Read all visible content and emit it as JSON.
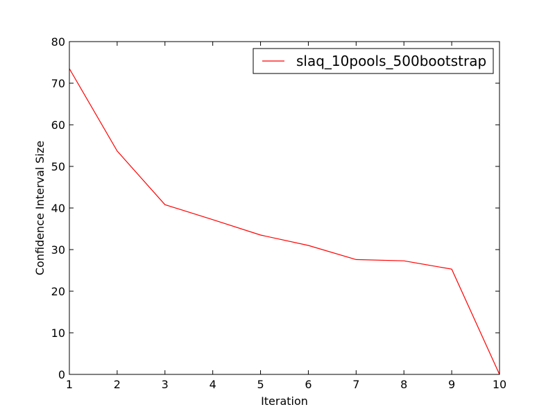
{
  "chart_data": {
    "type": "line",
    "xlabel": "Iteration",
    "ylabel": "Confidence Interval Size",
    "xlim": [
      1,
      10
    ],
    "ylim": [
      0,
      80
    ],
    "xticks": [
      "1",
      "2",
      "3",
      "4",
      "5",
      "6",
      "7",
      "8",
      "9",
      "10"
    ],
    "yticks": [
      "0",
      "10",
      "20",
      "30",
      "40",
      "50",
      "60",
      "70",
      "80"
    ],
    "grid": false,
    "legend_position": "top-right",
    "series": [
      {
        "name": "slaq_10pools_500bootstrap",
        "color": "#ff0000",
        "x": [
          1,
          2,
          3,
          4,
          5,
          6,
          7,
          8,
          9,
          10
        ],
        "y": [
          73.5,
          53.7,
          40.8,
          37.2,
          33.5,
          31.0,
          27.6,
          27.3,
          25.3,
          0
        ]
      }
    ]
  }
}
